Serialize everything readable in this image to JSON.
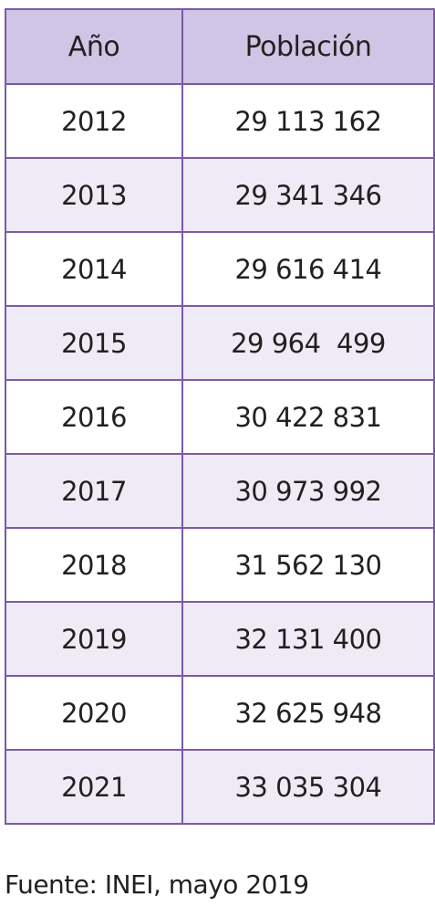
{
  "table": {
    "headers": [
      "Año",
      "Población"
    ],
    "rows": [
      [
        "2012",
        "29 113 162"
      ],
      [
        "2013",
        "29 341 346"
      ],
      [
        "2014",
        "29 616 414"
      ],
      [
        "2015",
        "29 964  499"
      ],
      [
        "2016",
        "30 422 831"
      ],
      [
        "2017",
        "30 973 992"
      ],
      [
        "2018",
        "31 562 130"
      ],
      [
        "2019",
        "32 131 400"
      ],
      [
        "2020",
        "32 625 948"
      ],
      [
        "2021",
        "33 035 304"
      ]
    ]
  },
  "source": "Fuente: INEI, mayo 2019",
  "colors": {
    "border": "#7b5aa6",
    "header_bg": "#d0c5e4",
    "striped_row_bg": "#efebf6"
  }
}
